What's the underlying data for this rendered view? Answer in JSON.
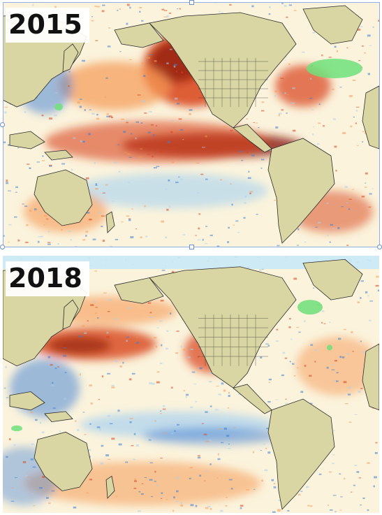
{
  "panels": [
    {
      "id": "panel-2015",
      "year_label": "2015",
      "anomaly": "strong"
    },
    {
      "id": "panel-2018",
      "year_label": "2018",
      "anomaly": "moderate"
    }
  ],
  "colors": {
    "warm_dark": "#8a1a0c",
    "warm": "#d8431b",
    "warm_light": "#f59a55",
    "neutral": "#fbf3dc",
    "cool_light": "#a9d2f0",
    "cool": "#3d7fd6",
    "land": "#d9d6a4",
    "ice": "#c9e9f7",
    "green_patch": "#6fe07a",
    "border": "#2a2a2a"
  }
}
